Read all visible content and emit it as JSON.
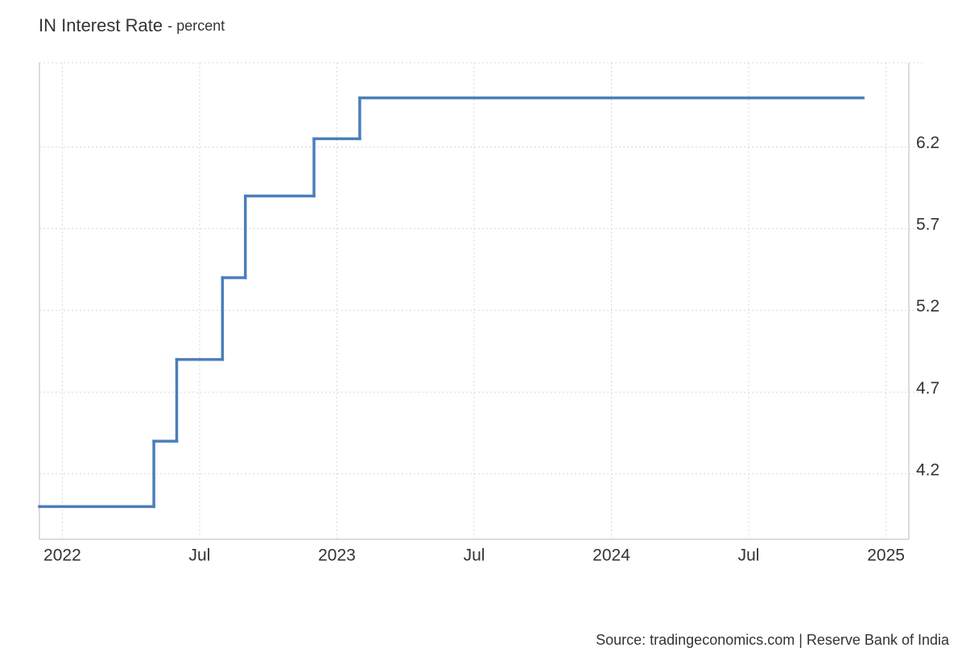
{
  "chart_data": {
    "type": "line",
    "step": true,
    "title": "IN Interest Rate",
    "subtitle": "- percent",
    "source": "Source: tradingeconomics.com | Reserve Bank of India",
    "x": [
      "2021-12",
      "2022-05",
      "2022-06",
      "2022-08",
      "2022-09",
      "2022-12",
      "2023-02",
      "2024-12"
    ],
    "series": [
      {
        "name": "Interest Rate",
        "color": "#4a7ebb",
        "values": [
          4.0,
          4.4,
          4.9,
          5.4,
          5.9,
          6.25,
          6.5,
          6.5
        ]
      }
    ],
    "xlim": [
      "2021-12",
      "2025-02"
    ],
    "xticks": [
      {
        "value": "2022-01",
        "label": "2022"
      },
      {
        "value": "2022-07",
        "label": "Jul"
      },
      {
        "value": "2023-01",
        "label": "2023"
      },
      {
        "value": "2023-07",
        "label": "Jul"
      },
      {
        "value": "2024-01",
        "label": "2024"
      },
      {
        "value": "2024-07",
        "label": "Jul"
      },
      {
        "value": "2025-01",
        "label": "2025"
      }
    ],
    "ylim": [
      3.8,
      6.715
    ],
    "yticks": [
      4.2,
      4.7,
      5.2,
      5.7,
      6.2
    ],
    "grid": true
  }
}
